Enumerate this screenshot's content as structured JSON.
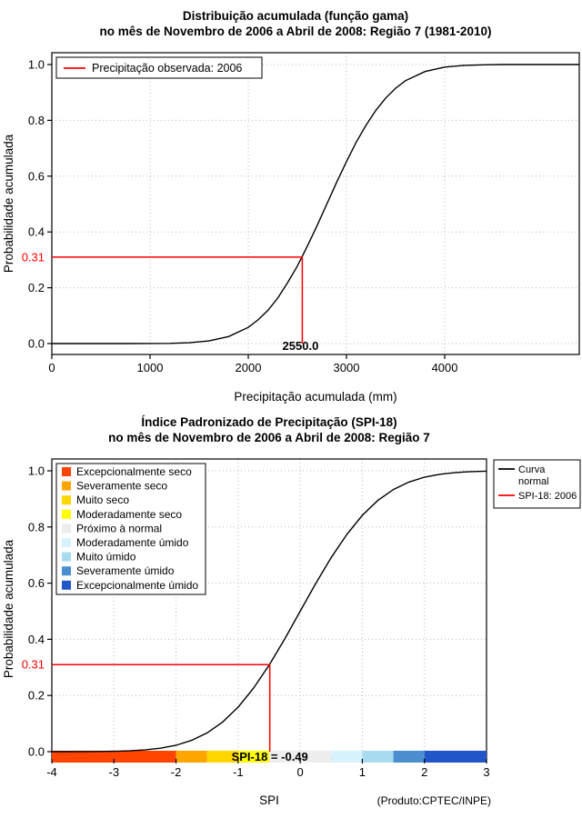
{
  "chart_data": [
    {
      "type": "line",
      "title": "Distribuição acumulada (função gama)",
      "subtitle": "no mês de Novembro de 2006 a Abril de 2008: Região 7 (1981-2010)",
      "xlabel": "Precipitação acumulada (mm)",
      "ylabel": "Probabilidade acumulada",
      "xlim": [
        0,
        5370
      ],
      "ylim": [
        0,
        1
      ],
      "grid": true,
      "xticks": [
        "0",
        "1000",
        "2000",
        "3000",
        "4000"
      ],
      "xtick_values": [
        0,
        1000,
        2000,
        3000,
        4000
      ],
      "yticks": [
        "0.0",
        "0.2",
        "0.4",
        "0.6",
        "0.8",
        "1.0"
      ],
      "ytick_values": [
        0,
        0.2,
        0.4,
        0.6,
        0.8,
        1
      ],
      "legend": {
        "position": "top-left",
        "entries": [
          {
            "label": "Precipitação observada: 2006",
            "color": "#FF0000",
            "type": "line"
          }
        ]
      },
      "series": [
        {
          "name": "Distribuição acumulada (função gama)",
          "color": "#000000",
          "x": [
            0,
            400,
            800,
            1000,
            1200,
            1400,
            1600,
            1800,
            2000,
            2100,
            2200,
            2300,
            2400,
            2500,
            2600,
            2700,
            2800,
            2900,
            3000,
            3100,
            3200,
            3300,
            3400,
            3500,
            3600,
            3800,
            4000,
            4200,
            4400,
            4600,
            4800,
            5000,
            5370
          ],
          "y": [
            0,
            0,
            0,
            0.0002,
            0.0008,
            0.003,
            0.0094,
            0.025,
            0.058,
            0.085,
            0.119,
            0.163,
            0.218,
            0.278,
            0.348,
            0.422,
            0.5,
            0.578,
            0.652,
            0.722,
            0.783,
            0.836,
            0.88,
            0.915,
            0.942,
            0.975,
            0.991,
            0.997,
            0.999,
            1.0,
            1.0,
            1.0,
            1.0
          ]
        }
      ],
      "annotation": {
        "x": 2550.0,
        "y": 0.31,
        "x_label": "2550.0",
        "y_label": "0.31",
        "color": "#FF0000"
      }
    },
    {
      "type": "line",
      "title": "Índice Padronizado de Precipitação (SPI-18)",
      "subtitle": "no mês de Novembro de 2006 a Abril de 2008: Região 7",
      "xlabel": "SPI",
      "ylabel": "Probabilidade acumulada",
      "xlim": [
        -4,
        3
      ],
      "ylim": [
        0,
        1
      ],
      "grid": true,
      "xticks": [
        "-4",
        "-3",
        "-2",
        "-1",
        "0",
        "1",
        "2",
        "3"
      ],
      "xtick_values": [
        -4,
        -3,
        -2,
        -1,
        0,
        1,
        2,
        3
      ],
      "yticks": [
        "0.0",
        "0.2",
        "0.4",
        "0.6",
        "0.8",
        "1.0"
      ],
      "ytick_values": [
        0,
        0.2,
        0.4,
        0.6,
        0.8,
        1
      ],
      "category_legend": [
        {
          "label": "Excepcionalmente seco",
          "color": "#FF4500"
        },
        {
          "label": "Severamente seco",
          "color": "#FFA500"
        },
        {
          "label": "Muito seco",
          "color": "#FFD700"
        },
        {
          "label": "Moderadamente seco",
          "color": "#FFFF00"
        },
        {
          "label": "Próximo à normal",
          "color": "#EDEDED"
        },
        {
          "label": "Moderadamente úmido",
          "color": "#D6F2FC"
        },
        {
          "label": "Muito úmido",
          "color": "#A8DCF0"
        },
        {
          "label": "Severamente úmido",
          "color": "#4C8FD0"
        },
        {
          "label": "Excepcionalmente úmido",
          "color": "#2156C8"
        }
      ],
      "line_legend": [
        {
          "label_lines": [
            "Curva",
            "normal"
          ],
          "color": "#000000"
        },
        {
          "label_lines": [
            "SPI-18: 2006"
          ],
          "color": "#FF0000"
        }
      ],
      "colorbar": [
        {
          "from": -4,
          "to": -2,
          "color": "#FF4500"
        },
        {
          "from": -2,
          "to": -1.5,
          "color": "#FFA500"
        },
        {
          "from": -1.5,
          "to": -1,
          "color": "#FFD700"
        },
        {
          "from": -1,
          "to": -0.5,
          "color": "#FFFF00"
        },
        {
          "from": -0.5,
          "to": 0.5,
          "color": "#EDEDED"
        },
        {
          "from": 0.5,
          "to": 1,
          "color": "#D6F2FC"
        },
        {
          "from": 1,
          "to": 1.5,
          "color": "#A8DCF0"
        },
        {
          "from": 1.5,
          "to": 2,
          "color": "#4C8FD0"
        },
        {
          "from": 2,
          "to": 3,
          "color": "#2156C8"
        }
      ],
      "series": [
        {
          "name": "Curva normal",
          "color": "#000000",
          "x": [
            -4,
            -3.75,
            -3.5,
            -3.25,
            -3,
            -2.75,
            -2.5,
            -2.25,
            -2,
            -1.75,
            -1.5,
            -1.25,
            -1,
            -0.75,
            -0.5,
            -0.25,
            0,
            0.25,
            0.5,
            0.75,
            1,
            1.25,
            1.5,
            1.75,
            2,
            2.25,
            2.5,
            2.75,
            3
          ],
          "y": [
            0,
            0.0001,
            0.0002,
            0.0006,
            0.0013,
            0.003,
            0.0062,
            0.0122,
            0.0228,
            0.0401,
            0.0668,
            0.1056,
            0.1587,
            0.2266,
            0.3085,
            0.4013,
            0.5,
            0.5987,
            0.6915,
            0.7734,
            0.8413,
            0.8944,
            0.9332,
            0.9599,
            0.9772,
            0.9878,
            0.9938,
            0.997,
            0.9987
          ]
        }
      ],
      "annotation": {
        "x": -0.49,
        "y": 0.31,
        "text": "SPI-18 = -0.49",
        "y_label": "0.31",
        "color": "#FF0000"
      },
      "footnote": "(Produto:CPTEC/INPE)"
    }
  ]
}
